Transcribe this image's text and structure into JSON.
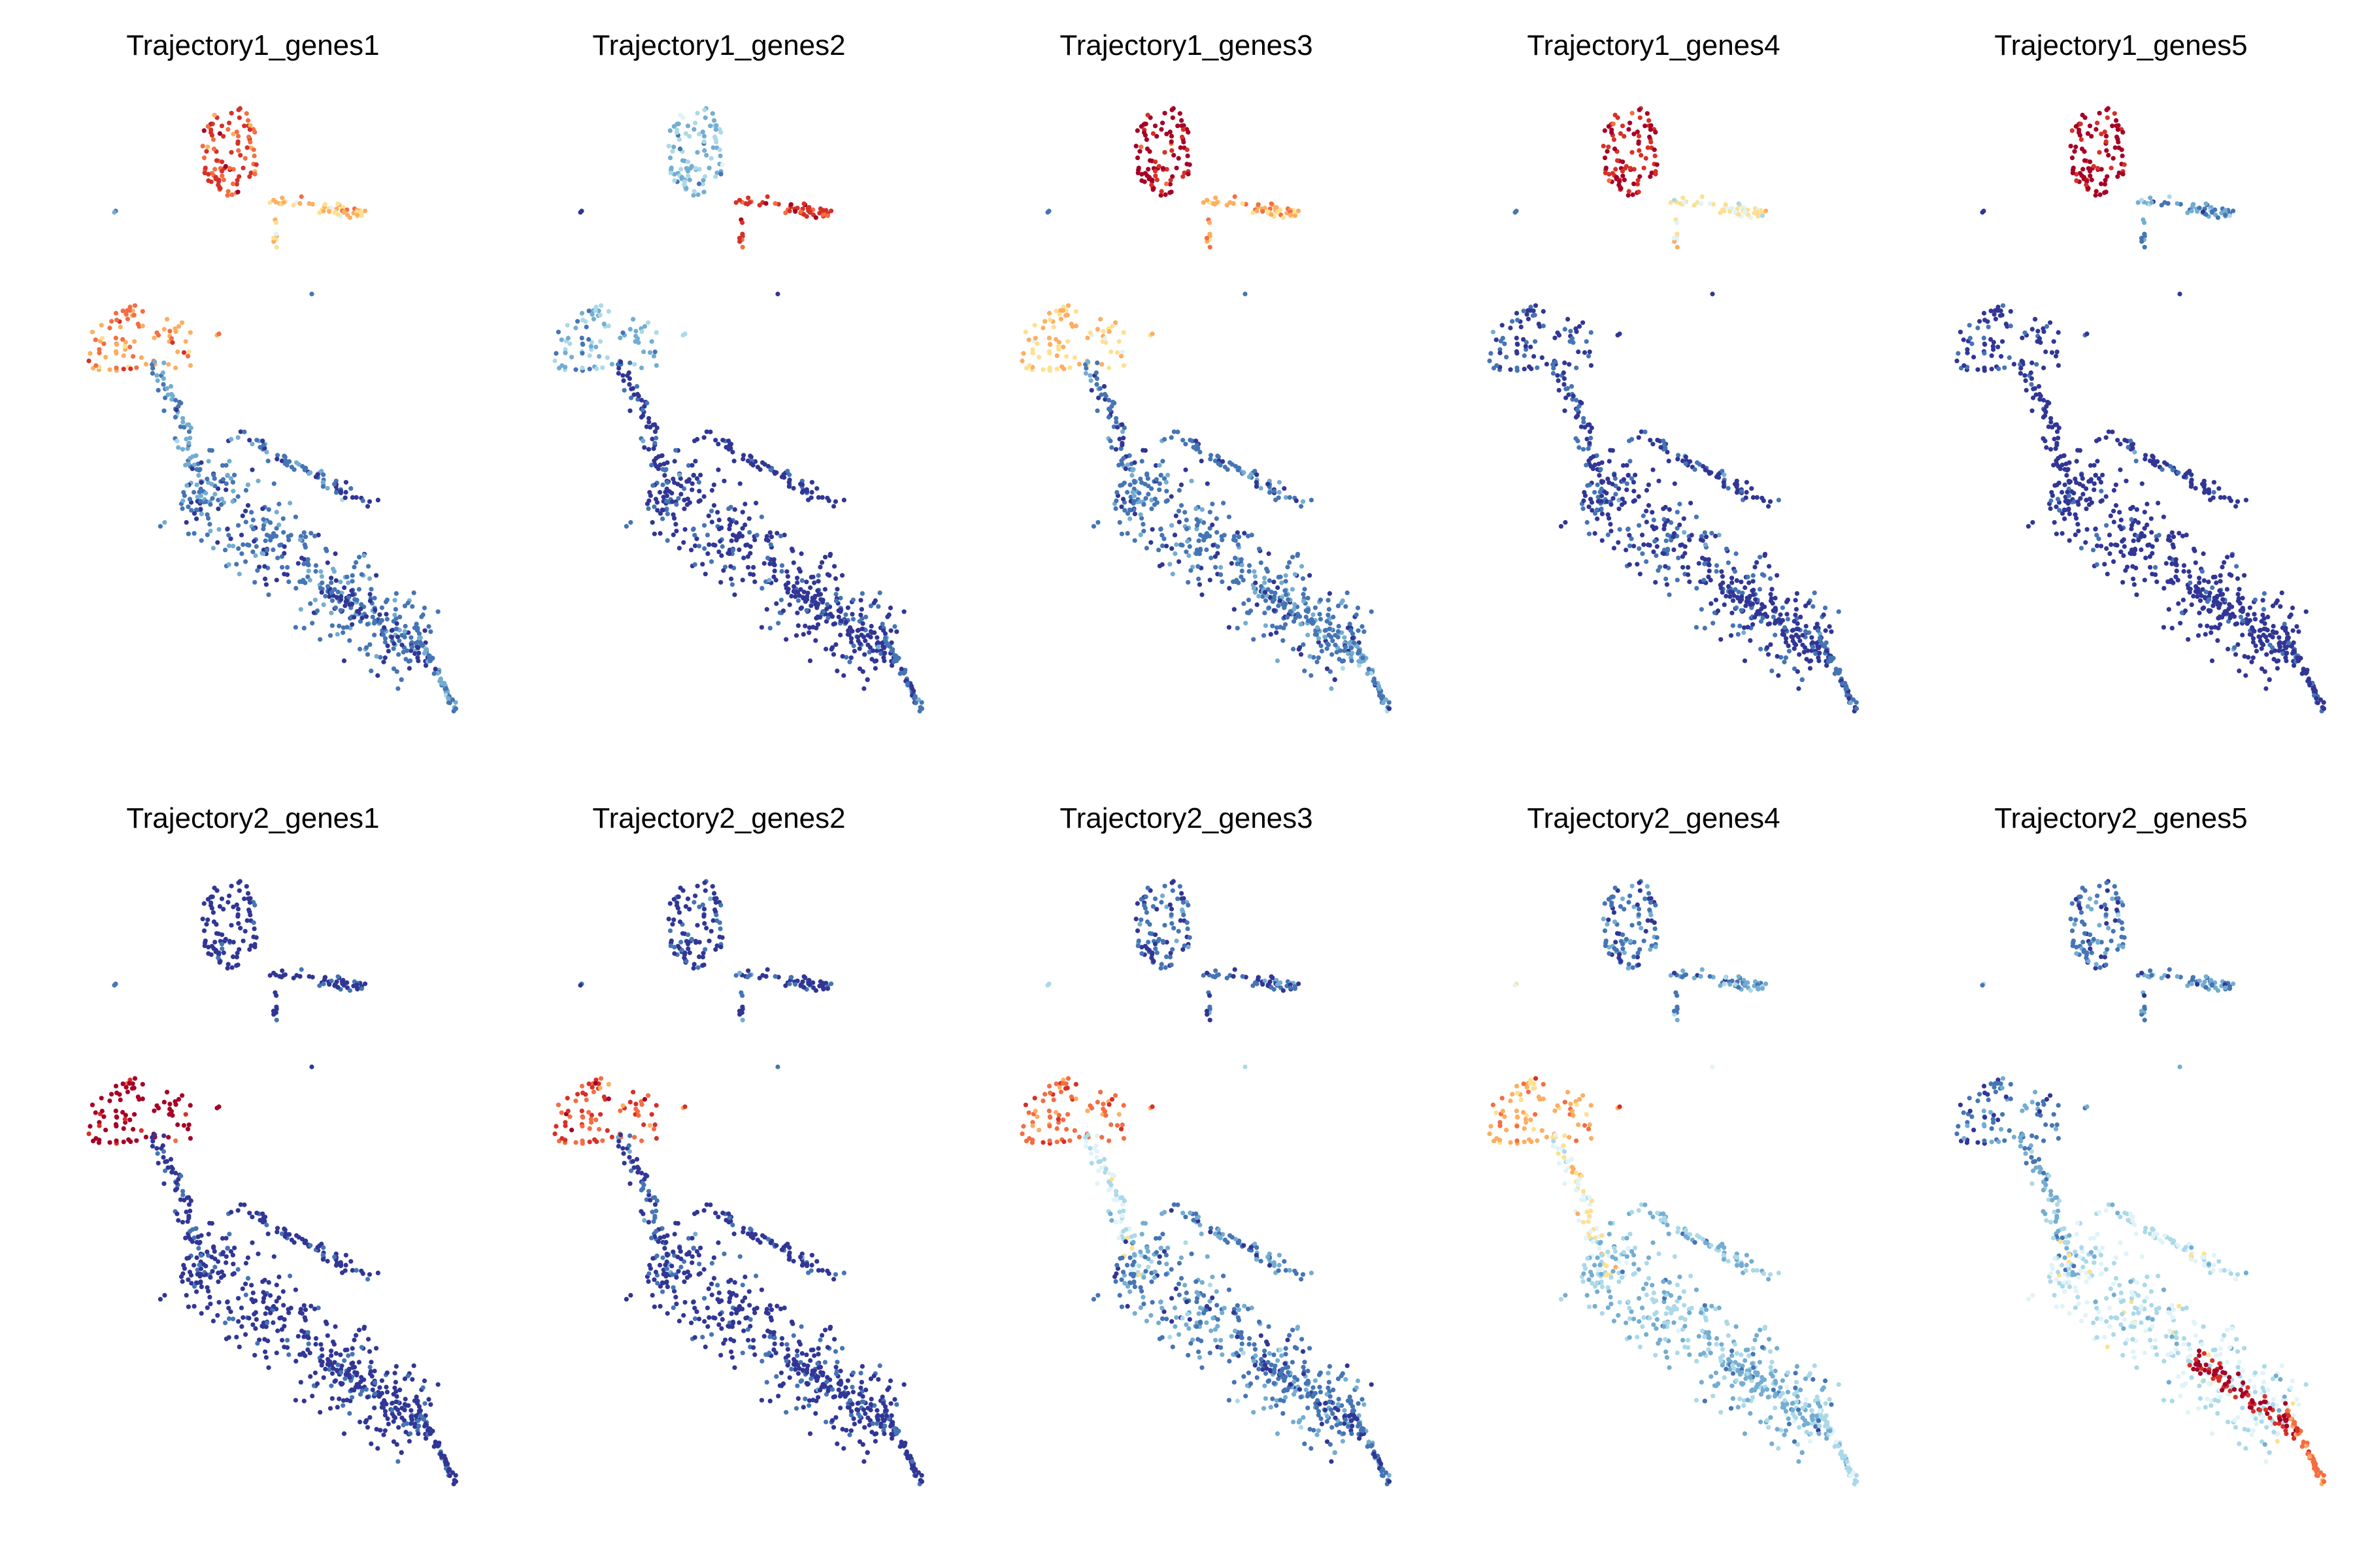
{
  "figure": {
    "colormap": [
      "#313695",
      "#4575b4",
      "#74add1",
      "#abd9e9",
      "#e0f3f8",
      "#fee090",
      "#fdae61",
      "#f46d43",
      "#d73027",
      "#a50026"
    ]
  },
  "chart_data": [
    {
      "type": "scatter",
      "title": "Trajectory1_genes1",
      "row": 0,
      "col": 0,
      "expression": {
        "top_cluster": 0.8,
        "arm": 0.6,
        "upper_left": 0.7,
        "trunk": 0.2,
        "body": 0.15,
        "tail": 0.2,
        "lower_right": 0.1
      }
    },
    {
      "type": "scatter",
      "title": "Trajectory1_genes2",
      "row": 0,
      "col": 1,
      "expression": {
        "top_cluster": 0.3,
        "arm": 0.85,
        "upper_left": 0.25,
        "trunk": 0.05,
        "body": 0.05,
        "tail": 0.15,
        "lower_right": 0.05
      }
    },
    {
      "type": "scatter",
      "title": "Trajectory1_genes3",
      "row": 0,
      "col": 2,
      "expression": {
        "top_cluster": 0.95,
        "arm": 0.65,
        "upper_left": 0.6,
        "trunk": 0.15,
        "body": 0.15,
        "tail": 0.2,
        "lower_right": 0.2
      }
    },
    {
      "type": "scatter",
      "title": "Trajectory1_genes4",
      "row": 0,
      "col": 3,
      "expression": {
        "top_cluster": 0.9,
        "arm": 0.5,
        "upper_left": 0.1,
        "trunk": 0.08,
        "body": 0.08,
        "tail": 0.1,
        "lower_right": 0.05
      }
    },
    {
      "type": "scatter",
      "title": "Trajectory1_genes5",
      "row": 0,
      "col": 4,
      "expression": {
        "top_cluster": 0.95,
        "arm": 0.2,
        "upper_left": 0.05,
        "trunk": 0.03,
        "body": 0.03,
        "tail": 0.05,
        "lower_right": 0.03
      }
    },
    {
      "type": "scatter",
      "title": "Trajectory2_genes1",
      "row": 1,
      "col": 0,
      "expression": {
        "top_cluster": 0.03,
        "arm": 0.05,
        "upper_left": 0.95,
        "trunk": 0.08,
        "body": 0.03,
        "tail": 0.05,
        "lower_right": 0.03
      }
    },
    {
      "type": "scatter",
      "title": "Trajectory2_genes2",
      "row": 1,
      "col": 1,
      "expression": {
        "top_cluster": 0.05,
        "arm": 0.08,
        "upper_left": 0.8,
        "trunk": 0.12,
        "body": 0.05,
        "tail": 0.05,
        "lower_right": 0.05
      }
    },
    {
      "type": "scatter",
      "title": "Trajectory2_genes3",
      "row": 1,
      "col": 2,
      "expression": {
        "top_cluster": 0.12,
        "arm": 0.12,
        "upper_left": 0.75,
        "trunk": 0.4,
        "body": 0.18,
        "tail": 0.15,
        "lower_right": 0.12
      }
    },
    {
      "type": "scatter",
      "title": "Trajectory2_genes4",
      "row": 1,
      "col": 3,
      "expression": {
        "top_cluster": 0.15,
        "arm": 0.2,
        "upper_left": 0.65,
        "trunk": 0.5,
        "body": 0.3,
        "tail": 0.35,
        "lower_right": 0.25
      }
    },
    {
      "type": "scatter",
      "title": "Trajectory2_genes5",
      "row": 1,
      "col": 4,
      "expression": {
        "top_cluster": 0.15,
        "arm": 0.2,
        "upper_left": 0.15,
        "trunk": 0.25,
        "body": 0.4,
        "tail": 0.75,
        "lower_right": 0.95
      }
    }
  ]
}
